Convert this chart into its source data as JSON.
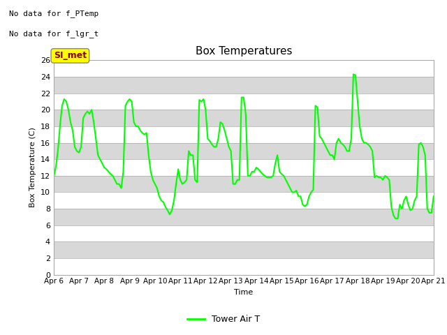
{
  "title": "Box Temperatures",
  "ylabel": "Box Temperature (C)",
  "xlabel": "Time",
  "ylim": [
    0,
    26
  ],
  "yticks": [
    0,
    2,
    4,
    6,
    8,
    10,
    12,
    14,
    16,
    18,
    20,
    22,
    24,
    26
  ],
  "xlim_start": 0,
  "xlim_end": 15,
  "xtick_labels": [
    "Apr 6",
    "Apr 7",
    "Apr 8",
    "Apr 9",
    "Apr 10",
    "Apr 11",
    "Apr 12",
    "Apr 13",
    "Apr 14",
    "Apr 15",
    "Apr 16",
    "Apr 17",
    "Apr 18",
    "Apr 19",
    "Apr 20",
    "Apr 21"
  ],
  "xtick_positions": [
    0,
    1,
    2,
    3,
    4,
    5,
    6,
    7,
    8,
    9,
    10,
    11,
    12,
    13,
    14,
    15
  ],
  "line_color": "#00FF00",
  "line_label": "Tower Air T",
  "no_data_text1": "No data for f_PTemp",
  "no_data_text2": "No data for f_lgr_t",
  "si_met_label": "SI_met",
  "fig_bg_color": "#FFFFFF",
  "plot_bg_color": "#D8D8D8",
  "band_white": "#FFFFFF",
  "band_gray": "#D8D8D8",
  "x_data": [
    0.0,
    0.083,
    0.167,
    0.25,
    0.333,
    0.417,
    0.5,
    0.583,
    0.667,
    0.75,
    0.833,
    0.917,
    1.0,
    1.083,
    1.167,
    1.25,
    1.333,
    1.417,
    1.5,
    1.583,
    1.667,
    1.75,
    1.833,
    1.917,
    2.0,
    2.083,
    2.167,
    2.25,
    2.333,
    2.417,
    2.5,
    2.583,
    2.667,
    2.75,
    2.833,
    2.917,
    3.0,
    3.083,
    3.167,
    3.25,
    3.333,
    3.417,
    3.5,
    3.583,
    3.667,
    3.75,
    3.833,
    3.917,
    4.0,
    4.083,
    4.167,
    4.25,
    4.333,
    4.417,
    4.5,
    4.583,
    4.667,
    4.75,
    4.833,
    4.917,
    5.0,
    5.083,
    5.167,
    5.25,
    5.333,
    5.417,
    5.5,
    5.583,
    5.667,
    5.75,
    5.833,
    5.917,
    6.0,
    6.083,
    6.167,
    6.25,
    6.333,
    6.417,
    6.5,
    6.583,
    6.667,
    6.75,
    6.833,
    6.917,
    7.0,
    7.083,
    7.167,
    7.25,
    7.333,
    7.417,
    7.5,
    7.583,
    7.667,
    7.75,
    7.833,
    7.917,
    8.0,
    8.083,
    8.167,
    8.25,
    8.333,
    8.417,
    8.5,
    8.583,
    8.667,
    8.75,
    8.833,
    8.917,
    9.0,
    9.083,
    9.167,
    9.25,
    9.333,
    9.417,
    9.5,
    9.583,
    9.667,
    9.75,
    9.833,
    9.917,
    10.0,
    10.083,
    10.167,
    10.25,
    10.333,
    10.417,
    10.5,
    10.583,
    10.667,
    10.75,
    10.833,
    10.917,
    11.0,
    11.083,
    11.167,
    11.25,
    11.333,
    11.417,
    11.5,
    11.583,
    11.667,
    11.75,
    11.833,
    11.917,
    12.0,
    12.083,
    12.167,
    12.25,
    12.333,
    12.417,
    12.5,
    12.583,
    12.667,
    12.75,
    12.833,
    12.917,
    13.0,
    13.083,
    13.167,
    13.25,
    13.333,
    13.417,
    13.5,
    13.583,
    13.667,
    13.75,
    13.833,
    13.917,
    14.0,
    14.083,
    14.167,
    14.25,
    14.333,
    14.417,
    14.5,
    14.583,
    14.667,
    14.75,
    14.833,
    14.917,
    15.0
  ],
  "y_data": [
    11.8,
    13.0,
    15.0,
    18.0,
    20.5,
    21.3,
    21.0,
    20.0,
    18.5,
    17.5,
    15.5,
    15.0,
    14.8,
    15.5,
    19.0,
    19.5,
    19.8,
    19.5,
    20.0,
    18.5,
    16.5,
    14.5,
    14.0,
    13.5,
    13.0,
    12.8,
    12.5,
    12.2,
    12.0,
    11.5,
    11.0,
    11.0,
    10.5,
    12.5,
    20.5,
    21.0,
    21.3,
    21.0,
    18.5,
    18.0,
    18.0,
    17.5,
    17.2,
    17.0,
    17.2,
    14.5,
    12.5,
    11.5,
    11.0,
    10.5,
    9.5,
    9.0,
    8.8,
    8.2,
    7.8,
    7.3,
    7.8,
    9.0,
    11.0,
    12.8,
    11.5,
    11.0,
    11.2,
    11.5,
    15.0,
    14.5,
    14.5,
    11.5,
    11.2,
    21.2,
    21.0,
    21.3,
    20.0,
    16.5,
    16.2,
    15.8,
    15.5,
    15.5,
    16.5,
    18.5,
    18.3,
    17.5,
    16.5,
    15.5,
    15.0,
    11.0,
    11.0,
    11.5,
    11.5,
    21.5,
    21.5,
    19.5,
    12.0,
    12.0,
    12.5,
    12.5,
    13.0,
    12.8,
    12.5,
    12.2,
    12.0,
    11.8,
    11.8,
    11.8,
    12.0,
    13.5,
    14.5,
    12.5,
    12.2,
    12.0,
    11.5,
    11.0,
    10.5,
    10.0,
    10.0,
    10.2,
    9.5,
    9.5,
    8.5,
    8.3,
    8.5,
    9.5,
    10.0,
    10.3,
    20.5,
    20.3,
    16.8,
    16.5,
    16.0,
    15.5,
    15.0,
    14.5,
    14.5,
    14.0,
    16.0,
    16.5,
    16.0,
    15.8,
    15.5,
    15.0,
    15.0,
    16.5,
    24.3,
    24.2,
    21.0,
    18.0,
    16.5,
    16.0,
    16.0,
    15.8,
    15.5,
    15.0,
    11.8,
    12.0,
    11.8,
    11.8,
    11.5,
    12.0,
    11.8,
    11.5,
    8.2,
    7.2,
    6.8,
    6.8,
    8.5,
    8.0,
    9.0,
    9.5,
    8.5,
    7.8,
    8.0,
    9.0,
    9.5,
    15.8,
    16.0,
    15.5,
    14.5,
    8.0,
    7.5,
    7.5,
    9.5
  ]
}
